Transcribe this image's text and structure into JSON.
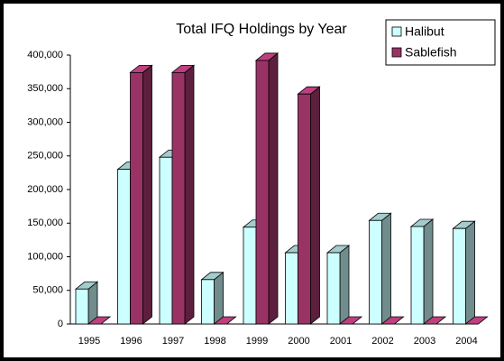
{
  "chart_data": {
    "type": "bar3d",
    "title": "Total IFQ Holdings by Year",
    "categories": [
      "1995",
      "1996",
      "1997",
      "1998",
      "1999",
      "2000",
      "2001",
      "2002",
      "2003",
      "2004"
    ],
    "series": [
      {
        "name": "Halibut",
        "color": "#ccffff",
        "values": [
          52000,
          230000,
          248000,
          66000,
          144000,
          106000,
          106000,
          154000,
          145000,
          142000
        ]
      },
      {
        "name": "Sablefish",
        "color": "#993366",
        "values": [
          0,
          374000,
          374000,
          0,
          392000,
          342000,
          0,
          0,
          0,
          0
        ]
      }
    ],
    "ylim": [
      0,
      400000
    ],
    "yticks": [
      0,
      {
        "value": 50000,
        "label": "50,000"
      },
      {
        "value": 100000,
        "label": "100,000"
      },
      {
        "value": 150000,
        "label": "150,000"
      },
      {
        "value": 200000,
        "label": "200,000"
      },
      {
        "value": 250000,
        "label": "250,000"
      },
      {
        "value": 300000,
        "label": "300,000"
      },
      {
        "value": 350000,
        "label": "350,000"
      },
      {
        "value": 400000,
        "label": "400,000"
      }
    ],
    "legend": "top-right"
  }
}
